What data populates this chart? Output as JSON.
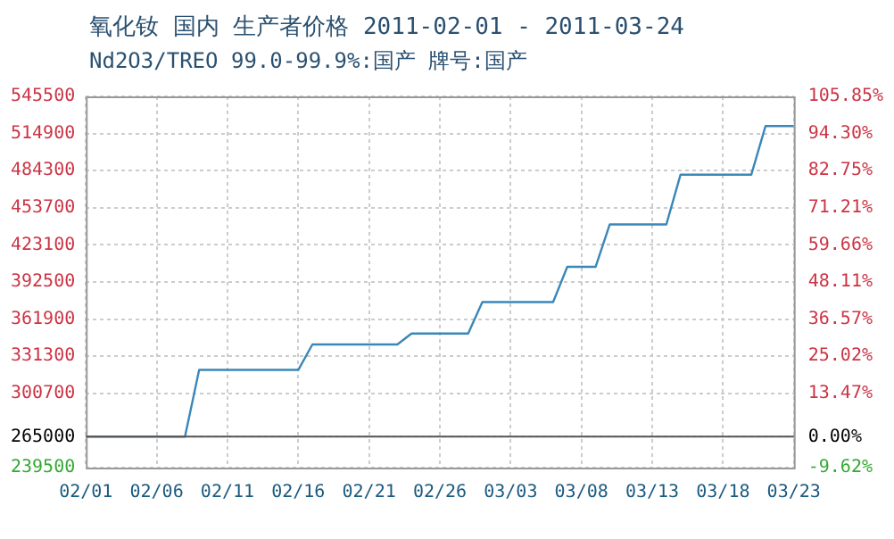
{
  "chart_data": {
    "type": "line",
    "title": "氧化钕 国内 生产者价格 2011-02-01 - 2011-03-24",
    "subtitle": "Nd2O3/TREO 99.0-99.9%:国产 牌号:国产",
    "x": [
      "2011-02-01",
      "2011-02-08",
      "2011-02-09",
      "2011-02-16",
      "2011-02-17",
      "2011-02-23",
      "2011-02-24",
      "2011-02-28",
      "2011-03-01",
      "2011-03-06",
      "2011-03-07",
      "2011-03-09",
      "2011-03-10",
      "2011-03-14",
      "2011-03-15",
      "2011-03-20",
      "2011-03-21",
      "2011-03-23"
    ],
    "series": [
      {
        "color": "#3a87b8",
        "values": [
          265000,
          265000,
          320000,
          320000,
          341000,
          341000,
          350000,
          350000,
          376000,
          376000,
          405000,
          405000,
          440000,
          440000,
          481000,
          481000,
          521000,
          521000
        ]
      }
    ],
    "xlim": [
      "2011-02-01",
      "2011-03-23"
    ],
    "xticks": [
      {
        "value": "2011-02-01",
        "label": "02/01"
      },
      {
        "value": "2011-02-06",
        "label": "02/06"
      },
      {
        "value": "2011-02-11",
        "label": "02/11"
      },
      {
        "value": "2011-02-16",
        "label": "02/16"
      },
      {
        "value": "2011-02-21",
        "label": "02/21"
      },
      {
        "value": "2011-02-26",
        "label": "02/26"
      },
      {
        "value": "2011-03-03",
        "label": "03/03"
      },
      {
        "value": "2011-03-08",
        "label": "03/08"
      },
      {
        "value": "2011-03-13",
        "label": "03/13"
      },
      {
        "value": "2011-03-18",
        "label": "03/18"
      },
      {
        "value": "2011-03-23",
        "label": "03/23"
      }
    ],
    "ylim": [
      239500,
      545500
    ],
    "yticks": [
      239500,
      265000,
      300700,
      331300,
      361900,
      392500,
      423100,
      453700,
      484300,
      514900,
      545500
    ],
    "y2lim": [
      -9.62,
      105.85
    ],
    "y2ticks": [
      {
        "value": -9.62,
        "label": "-9.62%"
      },
      {
        "value": 0,
        "label": "0.00%"
      },
      {
        "value": 13.47,
        "label": "13.47%"
      },
      {
        "value": 25.02,
        "label": "25.02%"
      },
      {
        "value": 36.57,
        "label": "36.57%"
      },
      {
        "value": 48.11,
        "label": "48.11%"
      },
      {
        "value": 59.66,
        "label": "59.66%"
      },
      {
        "value": 71.21,
        "label": "71.21%"
      },
      {
        "value": 82.75,
        "label": "82.75%"
      },
      {
        "value": 94.3,
        "label": "94.30%"
      },
      {
        "value": 105.85,
        "label": "105.85%"
      }
    ],
    "ref_lines": [
      {
        "axis": "y",
        "value": 265000,
        "color": "#555555"
      }
    ],
    "grid": true,
    "legend": false,
    "marker": "none",
    "line_style": "solid"
  }
}
